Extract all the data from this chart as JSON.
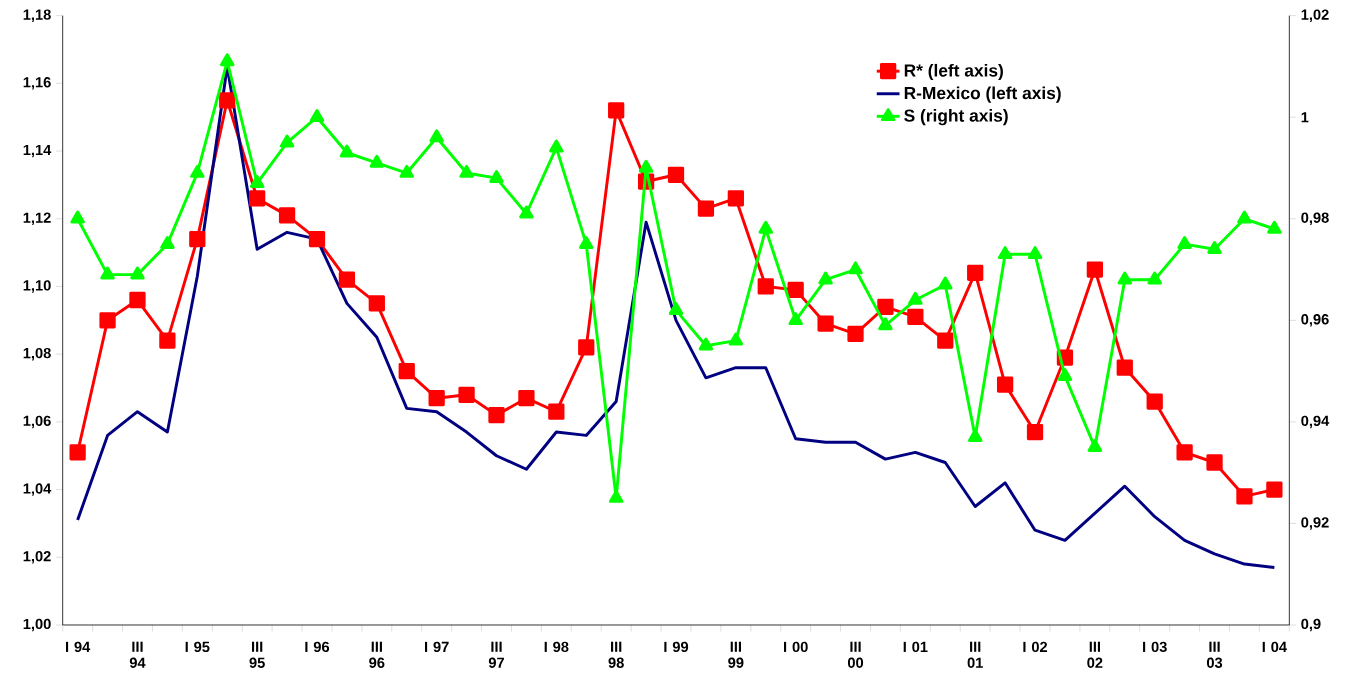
{
  "chart_data": {
    "type": "line",
    "categories": [
      "I 94",
      null,
      "III 94",
      null,
      "I 95",
      null,
      "III 95",
      null,
      "I 96",
      null,
      "III 96",
      null,
      "I 97",
      null,
      "III 97",
      null,
      "I 98",
      null,
      "III 98",
      null,
      "I 99",
      null,
      "III 99",
      null,
      "I 00",
      null,
      "III 00",
      null,
      "I 01",
      null,
      "III 01",
      null,
      "I 02",
      null,
      "III 02",
      null,
      "I 03",
      null,
      "III 03",
      null,
      "I 04"
    ],
    "series": [
      {
        "name": "R* (left axis)",
        "color": "#ff0000",
        "marker": "square",
        "values": [
          1.051,
          1.09,
          1.096,
          1.084,
          1.114,
          1.155,
          1.126,
          1.121,
          1.114,
          1.102,
          1.095,
          1.075,
          1.067,
          1.068,
          1.062,
          1.067,
          1.063,
          1.082,
          1.152,
          1.131,
          1.133,
          1.123,
          1.126,
          1.1,
          1.099,
          1.089,
          1.086,
          1.094,
          1.091,
          1.084,
          1.104,
          1.071,
          1.057,
          1.079,
          1.105,
          1.076,
          1.066,
          1.051,
          1.048,
          1.038,
          1.04
        ]
      },
      {
        "name": "R-Mexico (left axis)",
        "color": "#000080",
        "marker": "none",
        "values": [
          1.031,
          1.056,
          1.063,
          1.057,
          1.103,
          1.165,
          1.111,
          1.116,
          1.114,
          1.095,
          1.085,
          1.064,
          1.063,
          1.057,
          1.05,
          1.046,
          1.057,
          1.056,
          1.066,
          1.119,
          1.09,
          1.073,
          1.076,
          1.076,
          1.055,
          1.054,
          1.054,
          1.049,
          1.051,
          1.048,
          1.035,
          1.042,
          1.028,
          1.025,
          1.033,
          1.041,
          1.032,
          1.025,
          1.021,
          1.018,
          1.017
        ]
      },
      {
        "name": "S (right axis)",
        "color": "#00ff00",
        "marker": "triangle",
        "axis": "y2",
        "values": [
          0.98,
          0.969,
          0.969,
          0.975,
          0.989,
          1.011,
          0.987,
          0.995,
          1.0,
          0.993,
          0.991,
          0.989,
          0.996,
          0.989,
          0.988,
          0.981,
          0.994,
          0.975,
          0.925,
          0.99,
          0.962,
          0.955,
          0.956,
          0.978,
          0.96,
          0.968,
          0.97,
          0.959,
          0.964,
          0.967,
          0.937,
          0.973,
          0.973,
          0.949,
          0.935,
          0.968,
          0.968,
          0.975,
          0.974,
          0.98,
          0.978
        ]
      }
    ],
    "ylim": [
      1.0,
      1.18
    ],
    "yticks": [
      {
        "value": 1.0,
        "label": "1,00"
      },
      {
        "value": 1.02,
        "label": "1,02"
      },
      {
        "value": 1.04,
        "label": "1,04"
      },
      {
        "value": 1.06,
        "label": "1,06"
      },
      {
        "value": 1.08,
        "label": "1,08"
      },
      {
        "value": 1.1,
        "label": "1,10"
      },
      {
        "value": 1.12,
        "label": "1,12"
      },
      {
        "value": 1.14,
        "label": "1,14"
      },
      {
        "value": 1.16,
        "label": "1,16"
      },
      {
        "value": 1.18,
        "label": "1,18"
      }
    ],
    "y2lim": [
      0.9,
      1.02
    ],
    "y2ticks": [
      {
        "value": 0.9,
        "label": "0,9"
      },
      {
        "value": 0.92,
        "label": "0,92"
      },
      {
        "value": 0.94,
        "label": "0,94"
      },
      {
        "value": 0.96,
        "label": "0,96"
      },
      {
        "value": 0.98,
        "label": "0,98"
      },
      1,
      {
        "value": 1.02,
        "label": "1,02"
      }
    ],
    "legend": "top right"
  }
}
